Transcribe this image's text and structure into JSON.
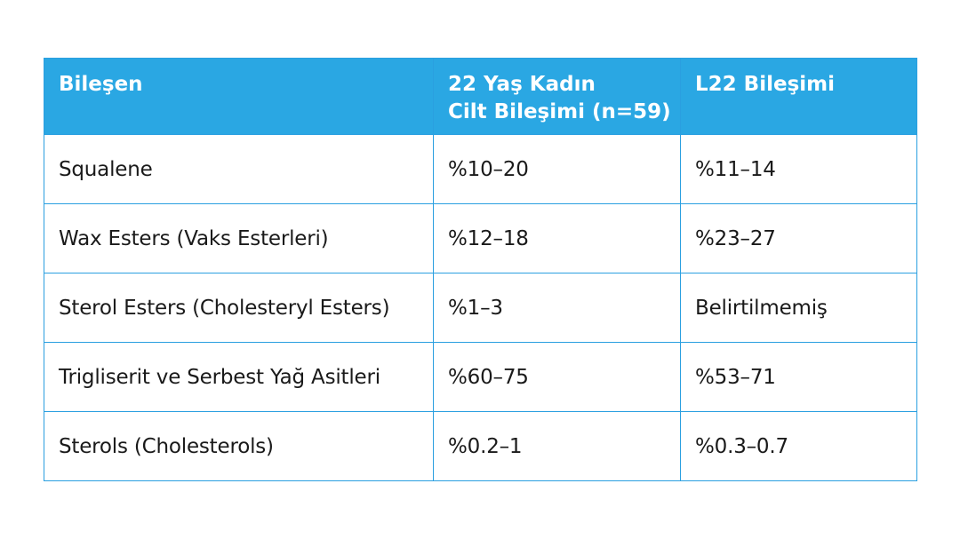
{
  "table": {
    "headers": {
      "col1": "Bileşen",
      "col2_line1": "22 Yaş Kadın",
      "col2_line2": "Cilt Bileşimi (n=59)",
      "col3": "L22 Bileşimi"
    },
    "rows": [
      {
        "component": "Squalene",
        "skin": "%10–20",
        "l22": "%11–14"
      },
      {
        "component": "Wax Esters (Vaks Esterleri)",
        "skin": "%12–18",
        "l22": "%23–27"
      },
      {
        "component": "Sterol Esters (Cholesteryl Esters)",
        "skin": "%1–3",
        "l22": "Belirtilmemiş"
      },
      {
        "component": "Trigliserit ve Serbest Yağ Asitleri",
        "skin": "%60–75",
        "l22": "%53–71"
      },
      {
        "component": "Sterols (Cholesterols)",
        "skin": "%0.2–1",
        "l22": "%0.3–0.7"
      }
    ]
  },
  "colors": {
    "header_bg": "#2aa7e3",
    "border": "#2a9fe0",
    "header_text": "#ffffff",
    "body_text": "#1a1a1a"
  }
}
